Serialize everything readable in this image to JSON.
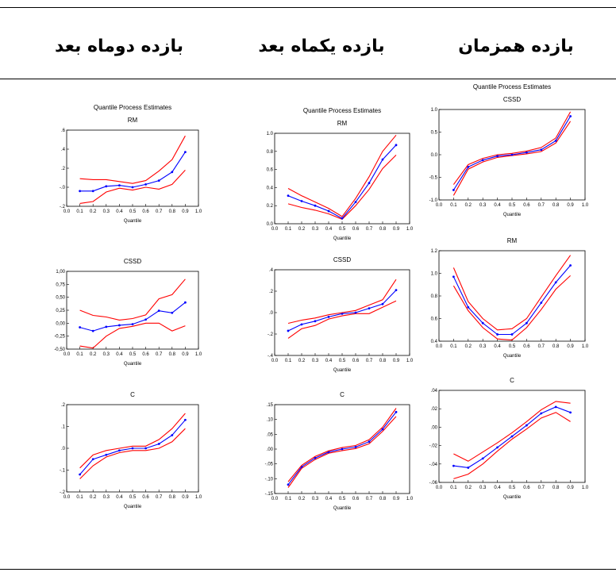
{
  "headers": {
    "left": "بازده دوماه بعد",
    "middle": "بازده یکماه بعد",
    "right": "بازده همزمان"
  },
  "colors": {
    "estimate": "#0000ff",
    "bands": "#ff0000",
    "frame": "#000000"
  },
  "chart_data": [
    {
      "id": "c0r0",
      "type": "line",
      "title": "Quantile Process Estimates",
      "subtitle": "RM",
      "xlabel": "Quantile",
      "xlim": [
        0,
        1
      ],
      "ylim": [
        -0.2,
        0.6
      ],
      "xticks": [
        0,
        0.1,
        0.2,
        0.3,
        0.4,
        0.5,
        0.6,
        0.7,
        0.8,
        0.9,
        1
      ],
      "xtick_labels": [
        "0.0",
        "0.1",
        "0.2",
        "0.3",
        "0.4",
        "0.5",
        "0.6",
        "0.7",
        "0.8",
        "0.9",
        "1.0"
      ],
      "yticks": [
        -0.2,
        0,
        0.2,
        0.4,
        0.6
      ],
      "ytick_labels": [
        "-.2",
        "-.0",
        ".2",
        ".4",
        ".6"
      ],
      "x": [
        0.1,
        0.2,
        0.3,
        0.4,
        0.5,
        0.6,
        0.7,
        0.8,
        0.9
      ],
      "series": [
        {
          "values": [
            -0.17,
            -0.15,
            -0.05,
            -0.01,
            -0.03,
            0.0,
            -0.02,
            0.03,
            0.18
          ]
        },
        {
          "values": [
            -0.04,
            -0.04,
            0.01,
            0.02,
            0.0,
            0.03,
            0.07,
            0.16,
            0.37
          ]
        },
        {
          "values": [
            0.09,
            0.08,
            0.08,
            0.06,
            0.04,
            0.07,
            0.17,
            0.29,
            0.54
          ]
        }
      ]
    },
    {
      "id": "c1r0",
      "type": "line",
      "title": "Quantile Process Estimates",
      "subtitle": "RM",
      "xlabel": "Quantile",
      "xlim": [
        0,
        1
      ],
      "ylim": [
        0,
        1
      ],
      "xticks": [
        0,
        0.1,
        0.2,
        0.3,
        0.4,
        0.5,
        0.6,
        0.7,
        0.8,
        0.9,
        1
      ],
      "xtick_labels": [
        "0.0",
        "0.1",
        "0.2",
        "0.3",
        "0.4",
        "0.5",
        "0.6",
        "0.7",
        "0.8",
        "0.9",
        "1.0"
      ],
      "yticks": [
        0,
        0.2,
        0.4,
        0.6,
        0.8,
        1
      ],
      "ytick_labels": [
        "0.0",
        "0.2",
        "0.4",
        "0.6",
        "0.8",
        "1.0"
      ],
      "x": [
        0.1,
        0.2,
        0.3,
        0.4,
        0.5,
        0.6,
        0.7,
        0.8,
        0.9
      ],
      "series": [
        {
          "values": [
            0.22,
            0.18,
            0.15,
            0.11,
            0.05,
            0.2,
            0.38,
            0.61,
            0.76
          ]
        },
        {
          "values": [
            0.31,
            0.25,
            0.2,
            0.14,
            0.06,
            0.24,
            0.45,
            0.71,
            0.87
          ]
        },
        {
          "values": [
            0.39,
            0.31,
            0.24,
            0.17,
            0.08,
            0.28,
            0.52,
            0.8,
            0.98
          ]
        }
      ]
    },
    {
      "id": "c2r0",
      "type": "line",
      "title": "Quantile Process Estimates",
      "subtitle": "CSSD",
      "xlabel": "Quantile",
      "xlim": [
        0,
        1
      ],
      "ylim": [
        -1,
        1
      ],
      "xticks": [
        0,
        0.1,
        0.2,
        0.3,
        0.4,
        0.5,
        0.6,
        0.7,
        0.8,
        0.9,
        1
      ],
      "xtick_labels": [
        "0.0",
        "0.1",
        "0.2",
        "0.3",
        "0.4",
        "0.5",
        "0.6",
        "0.7",
        "0.8",
        "0.9",
        "1.0"
      ],
      "yticks": [
        -1,
        -0.5,
        0,
        0.5,
        1
      ],
      "ytick_labels": [
        "-1.0",
        "-0.5",
        "0.0",
        "0.5",
        "1.0"
      ],
      "x": [
        0.1,
        0.2,
        0.3,
        0.4,
        0.5,
        0.6,
        0.7,
        0.8,
        0.9
      ],
      "series": [
        {
          "values": [
            -0.9,
            -0.32,
            -0.16,
            -0.06,
            -0.02,
            0.02,
            0.07,
            0.26,
            0.74
          ]
        },
        {
          "values": [
            -0.78,
            -0.27,
            -0.12,
            -0.03,
            0.0,
            0.05,
            0.11,
            0.31,
            0.85
          ]
        },
        {
          "values": [
            -0.66,
            -0.22,
            -0.08,
            0.0,
            0.03,
            0.08,
            0.16,
            0.37,
            0.95
          ]
        }
      ]
    },
    {
      "id": "c0r1",
      "type": "line",
      "title": "",
      "subtitle": "CSSD",
      "xlabel": "Quantile",
      "xlim": [
        0,
        1
      ],
      "ylim": [
        -0.5,
        1
      ],
      "xticks": [
        0,
        0.1,
        0.2,
        0.3,
        0.4,
        0.5,
        0.6,
        0.7,
        0.8,
        0.9,
        1
      ],
      "xtick_labels": [
        "0.0",
        "0.1",
        "0.2",
        "0.3",
        "0.4",
        "0.5",
        "0.6",
        "0.7",
        "0.8",
        "0.9",
        "1.0"
      ],
      "yticks": [
        -0.5,
        -0.25,
        0,
        0.25,
        0.5,
        0.75,
        1
      ],
      "ytick_labels": [
        "-0,50",
        "-0,25",
        "0,00",
        "0,25",
        "0,50",
        "0,75",
        "1,00"
      ],
      "x": [
        0.1,
        0.2,
        0.3,
        0.4,
        0.5,
        0.6,
        0.7,
        0.8,
        0.9
      ],
      "series": [
        {
          "values": [
            -0.44,
            -0.48,
            -0.25,
            -0.1,
            -0.06,
            0.0,
            0.0,
            -0.15,
            -0.05
          ]
        },
        {
          "values": [
            -0.08,
            -0.15,
            -0.07,
            -0.04,
            -0.02,
            0.07,
            0.24,
            0.2,
            0.4
          ]
        },
        {
          "values": [
            0.25,
            0.15,
            0.12,
            0.06,
            0.09,
            0.16,
            0.47,
            0.55,
            0.85
          ]
        }
      ]
    },
    {
      "id": "c1r1",
      "type": "line",
      "title": "",
      "subtitle": "CSSD",
      "xlabel": "Quantile",
      "xlim": [
        0,
        1
      ],
      "ylim": [
        -0.4,
        0.4
      ],
      "xticks": [
        0,
        0.1,
        0.2,
        0.3,
        0.4,
        0.5,
        0.6,
        0.7,
        0.8,
        0.9,
        1
      ],
      "xtick_labels": [
        "0.0",
        "0.1",
        "0.2",
        "0.3",
        "0.4",
        "0.5",
        "0.6",
        "0.7",
        "0.8",
        "0.9",
        "1.0"
      ],
      "yticks": [
        -0.4,
        -0.2,
        0,
        0.2,
        0.4
      ],
      "ytick_labels": [
        "-.4",
        "-.2",
        ".0",
        ".2",
        ".4"
      ],
      "x": [
        0.1,
        0.2,
        0.3,
        0.4,
        0.5,
        0.6,
        0.7,
        0.8,
        0.9
      ],
      "series": [
        {
          "values": [
            -0.24,
            -0.15,
            -0.12,
            -0.06,
            -0.03,
            -0.01,
            -0.01,
            0.05,
            0.11
          ]
        },
        {
          "values": [
            -0.17,
            -0.11,
            -0.08,
            -0.04,
            -0.01,
            0.0,
            0.04,
            0.08,
            0.21
          ]
        },
        {
          "values": [
            -0.1,
            -0.07,
            -0.05,
            -0.02,
            0.0,
            0.02,
            0.07,
            0.12,
            0.31
          ]
        }
      ]
    },
    {
      "id": "c2r1",
      "type": "line",
      "title": "",
      "subtitle": "RM",
      "xlabel": "Quantile",
      "xlim": [
        0,
        1
      ],
      "ylim": [
        0.4,
        1.2
      ],
      "xticks": [
        0,
        0.1,
        0.2,
        0.3,
        0.4,
        0.5,
        0.6,
        0.7,
        0.8,
        0.9,
        1
      ],
      "xtick_labels": [
        "0.0",
        "0.1",
        "0.2",
        "0.3",
        "0.4",
        "0.5",
        "0.6",
        "0.7",
        "0.8",
        "0.9",
        "1.0"
      ],
      "yticks": [
        0.4,
        0.6,
        0.8,
        1.0,
        1.2
      ],
      "ytick_labels": [
        "0.4",
        "0.6",
        "0.8",
        "1.0",
        "1.2"
      ],
      "x": [
        0.1,
        0.2,
        0.3,
        0.4,
        0.5,
        0.6,
        0.7,
        0.8,
        0.9
      ],
      "series": [
        {
          "values": [
            0.89,
            0.67,
            0.52,
            0.42,
            0.41,
            0.52,
            0.68,
            0.86,
            0.98
          ]
        },
        {
          "values": [
            0.97,
            0.7,
            0.56,
            0.46,
            0.46,
            0.56,
            0.74,
            0.92,
            1.07
          ]
        },
        {
          "values": [
            1.05,
            0.75,
            0.6,
            0.5,
            0.51,
            0.6,
            0.79,
            0.98,
            1.16
          ]
        }
      ]
    },
    {
      "id": "c0r2",
      "type": "line",
      "title": "",
      "subtitle": "C",
      "xlabel": "Quantile",
      "xlim": [
        0,
        1
      ],
      "ylim": [
        -0.2,
        0.2
      ],
      "xticks": [
        0,
        0.1,
        0.2,
        0.3,
        0.4,
        0.5,
        0.6,
        0.7,
        0.8,
        0.9,
        1
      ],
      "xtick_labels": [
        "0.0",
        "0.1",
        "0.2",
        "0.3",
        "0.4",
        "0.5",
        "0.6",
        "0.7",
        "0.8",
        "0.9",
        "1.0"
      ],
      "yticks": [
        -0.2,
        -0.1,
        0,
        0.1,
        0.2
      ],
      "ytick_labels": [
        "-.2",
        "-.1",
        ".0",
        ".1",
        ".2"
      ],
      "x": [
        0.1,
        0.2,
        0.3,
        0.4,
        0.5,
        0.6,
        0.7,
        0.8,
        0.9
      ],
      "series": [
        {
          "values": [
            -0.14,
            -0.08,
            -0.04,
            -0.02,
            -0.01,
            -0.01,
            0.0,
            0.03,
            0.09
          ]
        },
        {
          "values": [
            -0.12,
            -0.05,
            -0.03,
            -0.01,
            0.0,
            0.0,
            0.02,
            0.06,
            0.13
          ]
        },
        {
          "values": [
            -0.09,
            -0.03,
            -0.01,
            0.0,
            0.01,
            0.01,
            0.04,
            0.09,
            0.16
          ]
        }
      ]
    },
    {
      "id": "c1r2",
      "type": "line",
      "title": "",
      "subtitle": "C",
      "xlabel": "Quantile",
      "xlim": [
        0,
        1
      ],
      "ylim": [
        -0.15,
        0.15
      ],
      "xticks": [
        0,
        0.1,
        0.2,
        0.3,
        0.4,
        0.5,
        0.6,
        0.7,
        0.8,
        0.9,
        1
      ],
      "xtick_labels": [
        "0.0",
        "0.1",
        "0.2",
        "0.3",
        "0.4",
        "0.5",
        "0.6",
        "0.7",
        "0.8",
        "0.9",
        "1.0"
      ],
      "yticks": [
        -0.15,
        -0.1,
        -0.05,
        0,
        0.05,
        0.1,
        0.15
      ],
      "ytick_labels": [
        "-.15",
        "-.10",
        "-.05",
        ".00",
        ".05",
        ".10",
        ".15"
      ],
      "x": [
        0.1,
        0.2,
        0.3,
        0.4,
        0.5,
        0.6,
        0.7,
        0.8,
        0.9
      ],
      "series": [
        {
          "values": [
            -0.13,
            -0.065,
            -0.035,
            -0.014,
            -0.005,
            0.002,
            0.018,
            0.06,
            0.11
          ]
        },
        {
          "values": [
            -0.12,
            -0.06,
            -0.03,
            -0.01,
            0.0,
            0.007,
            0.025,
            0.067,
            0.125
          ]
        },
        {
          "values": [
            -0.11,
            -0.055,
            -0.025,
            -0.006,
            0.005,
            0.012,
            0.032,
            0.074,
            0.138
          ]
        }
      ]
    },
    {
      "id": "c2r2",
      "type": "line",
      "title": "",
      "subtitle": "C",
      "xlabel": "Quantile",
      "xlim": [
        0,
        1
      ],
      "ylim": [
        -0.06,
        0.04
      ],
      "xticks": [
        0,
        0.1,
        0.2,
        0.3,
        0.4,
        0.5,
        0.6,
        0.7,
        0.8,
        0.9,
        1
      ],
      "xtick_labels": [
        "0.0",
        "0.1",
        "0.2",
        "0.3",
        "0.4",
        "0.5",
        "0.6",
        "0.7",
        "0.8",
        "0.9",
        "1.0"
      ],
      "yticks": [
        -0.06,
        -0.04,
        -0.02,
        0,
        0.02,
        0.04
      ],
      "ytick_labels": [
        "-.06",
        "-.04",
        "-.02",
        ".00",
        ".02",
        ".04"
      ],
      "x": [
        0.1,
        0.2,
        0.3,
        0.4,
        0.5,
        0.6,
        0.7,
        0.8,
        0.9
      ],
      "series": [
        {
          "values": [
            -0.056,
            -0.051,
            -0.04,
            -0.026,
            -0.013,
            -0.002,
            0.01,
            0.016,
            0.006
          ]
        },
        {
          "values": [
            -0.042,
            -0.044,
            -0.034,
            -0.022,
            -0.01,
            0.002,
            0.015,
            0.022,
            0.016
          ]
        },
        {
          "values": [
            -0.029,
            -0.037,
            -0.027,
            -0.017,
            -0.006,
            0.006,
            0.019,
            0.028,
            0.026
          ]
        }
      ]
    }
  ]
}
